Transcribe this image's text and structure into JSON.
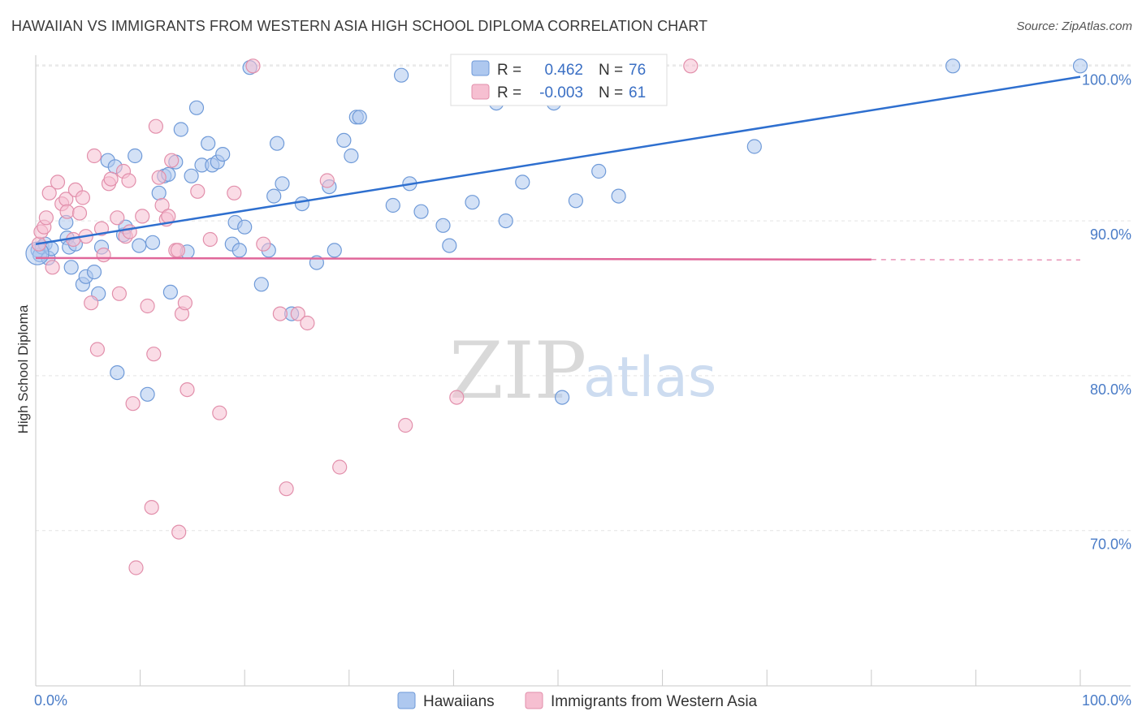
{
  "title": "HAWAIIAN VS IMMIGRANTS FROM WESTERN ASIA HIGH SCHOOL DIPLOMA CORRELATION CHART",
  "source": "Source: ZipAtlas.com",
  "watermark": {
    "zip": "ZIP",
    "atlas": "atlas"
  },
  "legend": {
    "r_label": "R =",
    "n_label": "N =",
    "entries": [
      {
        "r": "0.462",
        "n": "76"
      },
      {
        "r": "-0.003",
        "n": "61"
      }
    ]
  },
  "chart_data": {
    "type": "scatter",
    "title": "HAWAIIAN VS IMMIGRANTS FROM WESTERN ASIA HIGH SCHOOL DIPLOMA CORRELATION CHART",
    "xlabel": "",
    "ylabel": "High School Diploma",
    "xlim": [
      0,
      100
    ],
    "ylim": [
      60,
      101
    ],
    "x_tick_labels": [
      "0.0%",
      "100.0%"
    ],
    "y_ticks": [
      {
        "value": 100,
        "label": "100.0%"
      },
      {
        "value": 90,
        "label": "90.0%"
      },
      {
        "value": 80,
        "label": "80.0%"
      },
      {
        "value": 70,
        "label": "70.0%"
      }
    ],
    "colors": {
      "hawaiians_fill": "#aec8ef",
      "hawaiians_stroke": "#6f9ad8",
      "hawaiians_line": "#2e6fcf",
      "immigrants_fill": "#f6bfd1",
      "immigrants_stroke": "#e28fab",
      "immigrants_line": "#e0679a",
      "grid": "#e3e3e3",
      "axis_label": "#4a7cc7"
    },
    "series": [
      {
        "name": "Hawaiians",
        "r": 0.462,
        "n": 76,
        "trend": {
          "x": [
            0,
            100
          ],
          "y": [
            88.5,
            99.3
          ]
        },
        "points": [
          [
            0.2,
            88.1
          ],
          [
            0.4,
            87.8
          ],
          [
            0.6,
            88.3
          ],
          [
            0.9,
            88.5
          ],
          [
            1.2,
            87.6
          ],
          [
            1.5,
            88.2
          ],
          [
            3.0,
            88.9
          ],
          [
            3.2,
            88.3
          ],
          [
            2.9,
            89.9
          ],
          [
            3.4,
            87.0
          ],
          [
            3.8,
            88.5
          ],
          [
            4.5,
            85.9
          ],
          [
            4.8,
            86.4
          ],
          [
            5.6,
            86.7
          ],
          [
            6.0,
            85.3
          ],
          [
            6.3,
            88.3
          ],
          [
            6.9,
            93.9
          ],
          [
            7.6,
            93.5
          ],
          [
            7.8,
            80.2
          ],
          [
            8.4,
            89.1
          ],
          [
            8.6,
            89.6
          ],
          [
            9.5,
            94.2
          ],
          [
            9.9,
            88.4
          ],
          [
            10.7,
            78.8
          ],
          [
            11.2,
            88.6
          ],
          [
            11.8,
            91.8
          ],
          [
            12.3,
            92.9
          ],
          [
            12.7,
            93.0
          ],
          [
            12.9,
            85.4
          ],
          [
            13.4,
            93.8
          ],
          [
            13.9,
            95.9
          ],
          [
            14.5,
            88.0
          ],
          [
            14.9,
            92.9
          ],
          [
            15.4,
            97.3
          ],
          [
            15.9,
            93.6
          ],
          [
            16.5,
            95.0
          ],
          [
            16.9,
            93.6
          ],
          [
            17.4,
            93.8
          ],
          [
            17.9,
            94.3
          ],
          [
            18.8,
            88.5
          ],
          [
            19.1,
            89.9
          ],
          [
            19.5,
            88.1
          ],
          [
            20.0,
            89.6
          ],
          [
            20.5,
            99.9
          ],
          [
            21.6,
            85.9
          ],
          [
            22.3,
            88.1
          ],
          [
            22.8,
            91.6
          ],
          [
            23.1,
            95.0
          ],
          [
            23.6,
            92.4
          ],
          [
            24.5,
            84.0
          ],
          [
            25.5,
            91.1
          ],
          [
            26.9,
            87.3
          ],
          [
            28.1,
            92.2
          ],
          [
            28.6,
            88.1
          ],
          [
            29.5,
            95.2
          ],
          [
            30.2,
            94.2
          ],
          [
            30.7,
            96.7
          ],
          [
            31.0,
            96.7
          ],
          [
            34.2,
            91.0
          ],
          [
            35.0,
            99.4
          ],
          [
            35.8,
            92.4
          ],
          [
            36.9,
            90.6
          ],
          [
            39.0,
            89.7
          ],
          [
            39.6,
            88.4
          ],
          [
            41.8,
            91.2
          ],
          [
            44.1,
            97.6
          ],
          [
            45.0,
            90.0
          ],
          [
            46.6,
            92.5
          ],
          [
            49.6,
            97.6
          ],
          [
            50.4,
            78.6
          ],
          [
            51.7,
            91.3
          ],
          [
            53.9,
            93.2
          ],
          [
            55.8,
            91.6
          ],
          [
            68.8,
            94.8
          ],
          [
            87.8,
            100.0
          ],
          [
            100.0,
            100.0
          ]
        ]
      },
      {
        "name": "Immigrants from Western Asia",
        "r": -0.003,
        "n": 61,
        "trend": {
          "x": [
            0,
            80
          ],
          "y": [
            87.6,
            87.5
          ]
        },
        "trend_dashed_to": 100,
        "points": [
          [
            0.3,
            88.5
          ],
          [
            0.5,
            89.3
          ],
          [
            0.8,
            89.6
          ],
          [
            1.0,
            90.2
          ],
          [
            1.3,
            91.8
          ],
          [
            1.6,
            87.0
          ],
          [
            2.1,
            92.5
          ],
          [
            2.5,
            91.1
          ],
          [
            2.9,
            91.4
          ],
          [
            3.0,
            90.6
          ],
          [
            3.6,
            88.8
          ],
          [
            3.8,
            92.0
          ],
          [
            4.2,
            90.5
          ],
          [
            4.5,
            91.5
          ],
          [
            4.8,
            89.0
          ],
          [
            5.3,
            84.7
          ],
          [
            5.6,
            94.2
          ],
          [
            5.9,
            81.7
          ],
          [
            6.3,
            89.5
          ],
          [
            6.5,
            87.8
          ],
          [
            7.0,
            92.4
          ],
          [
            7.2,
            92.7
          ],
          [
            7.8,
            90.2
          ],
          [
            8.0,
            85.3
          ],
          [
            8.4,
            93.2
          ],
          [
            8.6,
            89.0
          ],
          [
            8.9,
            92.6
          ],
          [
            9.0,
            89.3
          ],
          [
            9.3,
            78.2
          ],
          [
            9.6,
            67.6
          ],
          [
            10.2,
            90.3
          ],
          [
            10.7,
            84.5
          ],
          [
            11.1,
            71.5
          ],
          [
            11.3,
            81.4
          ],
          [
            11.5,
            96.1
          ],
          [
            11.8,
            92.8
          ],
          [
            12.1,
            91.0
          ],
          [
            12.5,
            90.1
          ],
          [
            12.7,
            90.3
          ],
          [
            13.0,
            93.9
          ],
          [
            13.4,
            88.1
          ],
          [
            13.6,
            88.1
          ],
          [
            13.7,
            69.9
          ],
          [
            14.0,
            84.0
          ],
          [
            14.3,
            84.7
          ],
          [
            14.5,
            79.1
          ],
          [
            15.5,
            91.9
          ],
          [
            16.7,
            88.8
          ],
          [
            17.6,
            77.6
          ],
          [
            19.0,
            91.8
          ],
          [
            21.8,
            88.5
          ],
          [
            23.4,
            84.0
          ],
          [
            24.0,
            72.7
          ],
          [
            25.1,
            84.0
          ],
          [
            26.0,
            83.4
          ],
          [
            27.9,
            92.6
          ],
          [
            29.1,
            74.1
          ],
          [
            35.4,
            76.8
          ],
          [
            40.3,
            78.6
          ],
          [
            62.7,
            100.0
          ],
          [
            20.8,
            100.0
          ]
        ]
      }
    ]
  },
  "bottom_legend": [
    "Hawaiians",
    "Immigrants from Western Asia"
  ]
}
